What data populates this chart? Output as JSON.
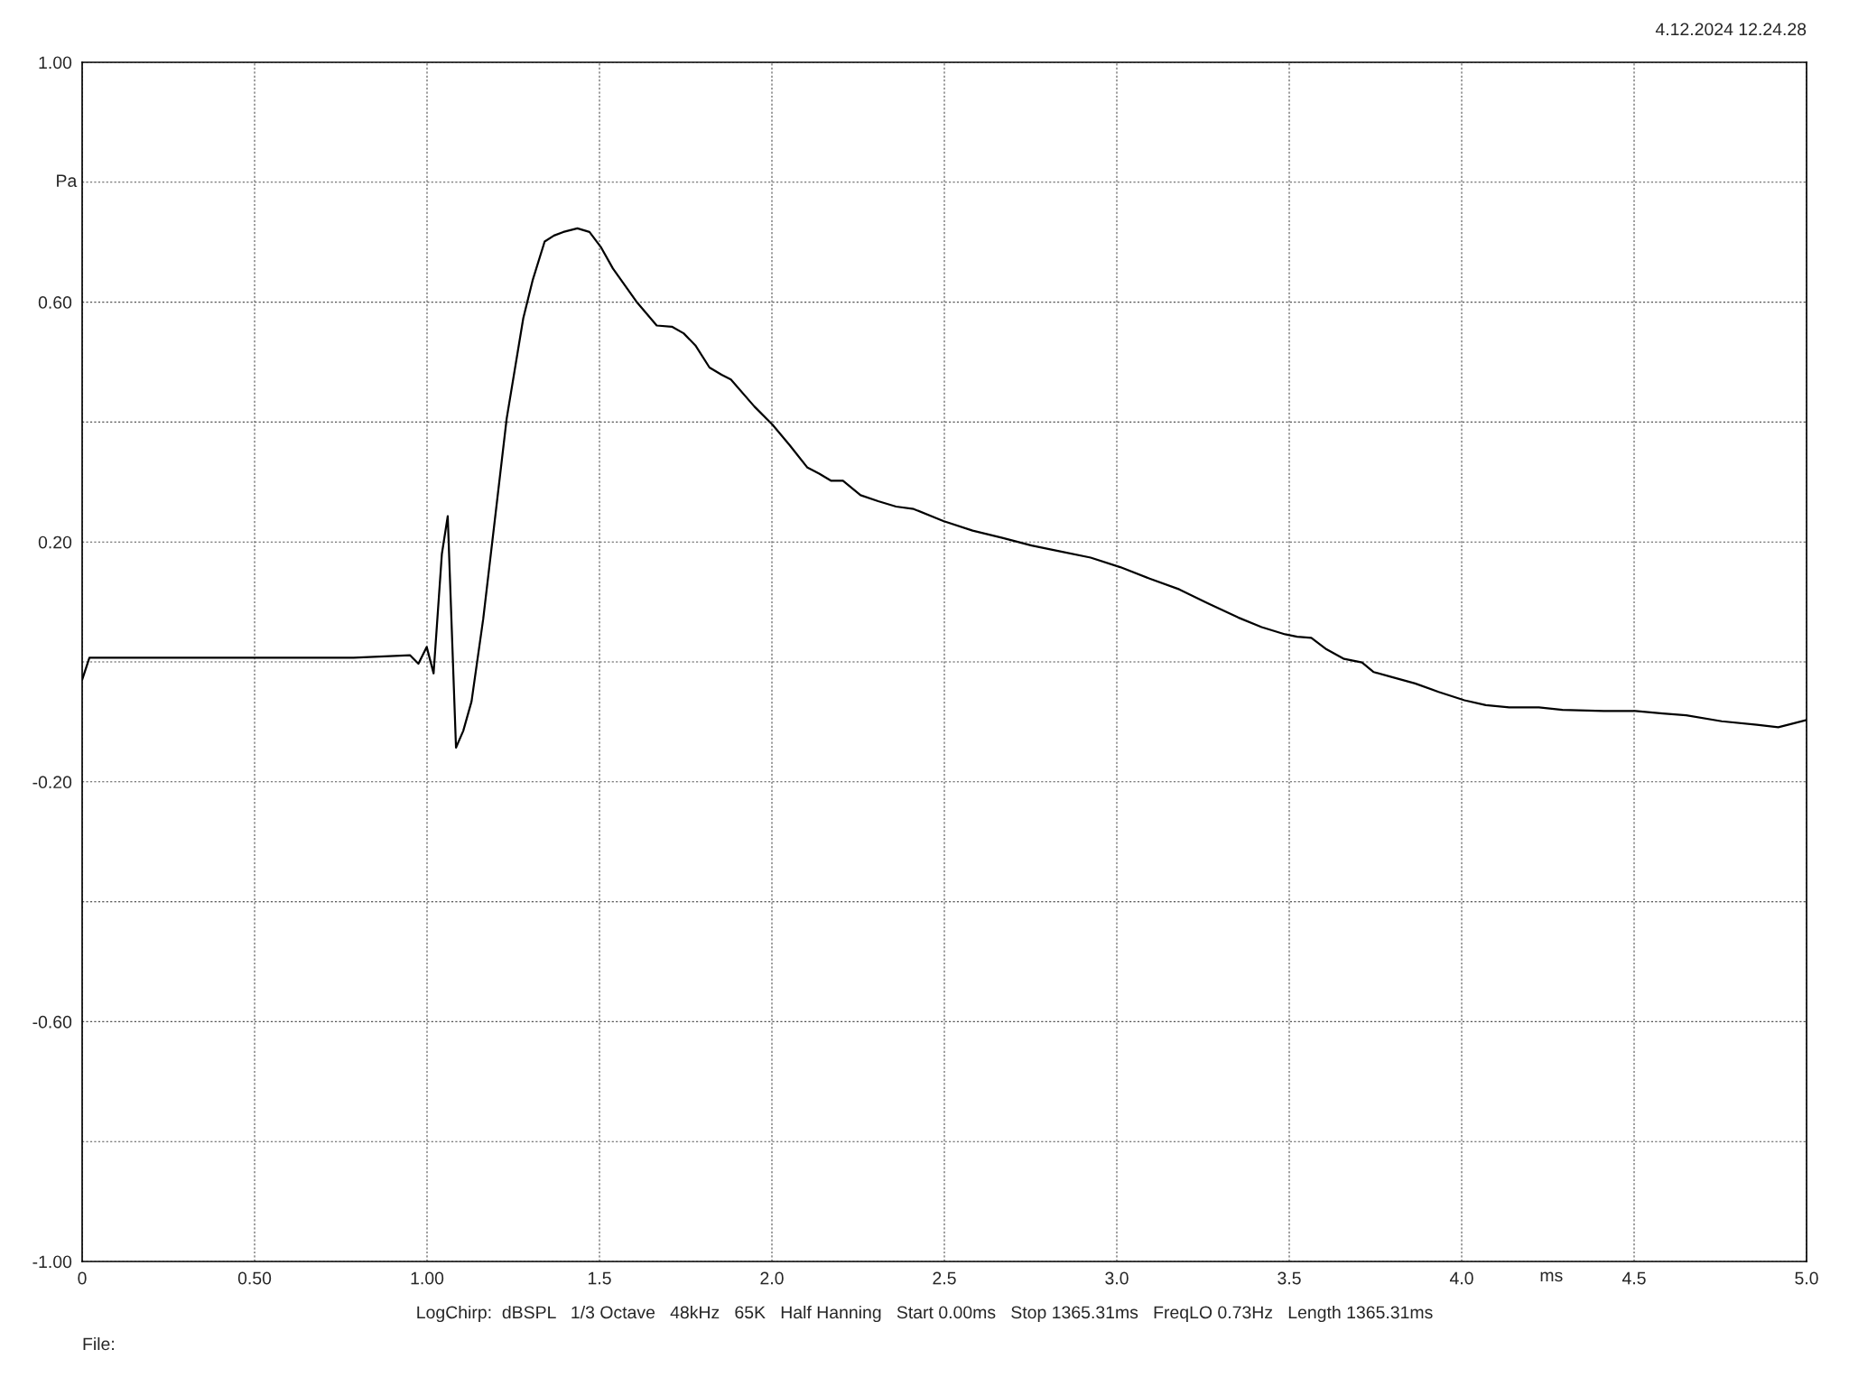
{
  "chart_data": {
    "type": "line",
    "xlabel": "ms",
    "ylabel": "Pa",
    "annotations": [
      "4.12.2024 12.24.28",
      "LogChirp:  dBSPL   1/3 Octave   48kHz   65K   Half Hanning   Start 0.00ms   Stop 1365.31ms   FreqLO 0.73Hz   Length 1365.31ms",
      "File:"
    ],
    "series": [
      {
        "color": "#000000",
        "x": [
          0,
          0.021,
          0.787,
          0.951,
          0.975,
          0.999,
          1.019,
          1.043,
          1.06,
          1.084,
          1.105,
          1.129,
          1.163,
          1.197,
          1.231,
          1.279,
          1.306,
          1.341,
          1.368,
          1.395,
          1.436,
          1.471,
          1.505,
          1.539,
          1.607,
          1.666,
          1.71,
          1.744,
          1.778,
          1.819,
          1.854,
          1.881,
          1.949,
          2.001,
          2.052,
          2.103,
          2.137,
          2.172,
          2.206,
          2.257,
          2.308,
          2.36,
          2.411,
          2.497,
          2.582,
          2.668,
          2.753,
          2.839,
          2.924,
          3.01,
          3.095,
          3.181,
          3.266,
          3.352,
          3.42,
          3.488,
          3.523,
          3.564,
          3.608,
          3.659,
          3.711,
          3.745,
          3.796,
          3.865,
          3.933,
          4.008,
          4.07,
          4.138,
          4.224,
          4.292,
          4.412,
          4.504,
          4.583,
          4.651,
          4.754,
          4.856,
          4.918,
          4.959,
          5.0
        ],
        "values": [
          -0.03,
          0.007,
          0.007,
          0.011,
          -0.003,
          0.025,
          -0.019,
          0.18,
          0.243,
          -0.143,
          -0.115,
          -0.066,
          0.072,
          0.239,
          0.406,
          0.573,
          0.636,
          0.701,
          0.711,
          0.717,
          0.723,
          0.717,
          0.691,
          0.656,
          0.601,
          0.561,
          0.559,
          0.548,
          0.528,
          0.491,
          0.479,
          0.471,
          0.426,
          0.396,
          0.361,
          0.324,
          0.314,
          0.302,
          0.302,
          0.278,
          0.268,
          0.259,
          0.255,
          0.235,
          0.219,
          0.207,
          0.194,
          0.184,
          0.174,
          0.158,
          0.139,
          0.121,
          0.097,
          0.074,
          0.058,
          0.046,
          0.042,
          0.04,
          0.021,
          0.005,
          -0.001,
          -0.017,
          -0.025,
          -0.036,
          -0.05,
          -0.064,
          -0.072,
          -0.076,
          -0.076,
          -0.08,
          -0.082,
          -0.082,
          -0.086,
          -0.089,
          -0.099,
          -0.105,
          -0.109,
          -0.103,
          -0.097
        ]
      }
    ],
    "xlim": [
      0,
      5
    ],
    "ylim": [
      -1,
      1
    ],
    "xticks": [
      0,
      {
        "value": 0.5,
        "label": "0.50"
      },
      {
        "value": 1,
        "label": "1.00"
      },
      1.5,
      {
        "value": 2,
        "label": "2.0"
      },
      2.5,
      {
        "value": 3,
        "label": "3.0"
      },
      3.5,
      {
        "value": 4,
        "label": "4.0"
      },
      4.5,
      {
        "value": 5,
        "label": "5.0"
      }
    ],
    "yticks": [
      {
        "value": -1,
        "label": "-1.00"
      },
      {
        "value": -0.8,
        "label": null
      },
      {
        "value": -0.6,
        "label": "-0.60"
      },
      {
        "value": -0.4,
        "label": null
      },
      {
        "value": -0.2,
        "label": "-0.20"
      },
      {
        "value": 0,
        "label": null
      },
      {
        "value": 0.2,
        "label": "0.20"
      },
      {
        "value": 0.4,
        "label": null
      },
      {
        "value": 0.6,
        "label": "0.60"
      },
      {
        "value": 0.8,
        "label": null
      },
      {
        "value": 1,
        "label": "1.00"
      }
    ],
    "grid": true,
    "line_style": "solid",
    "marker": "none"
  }
}
